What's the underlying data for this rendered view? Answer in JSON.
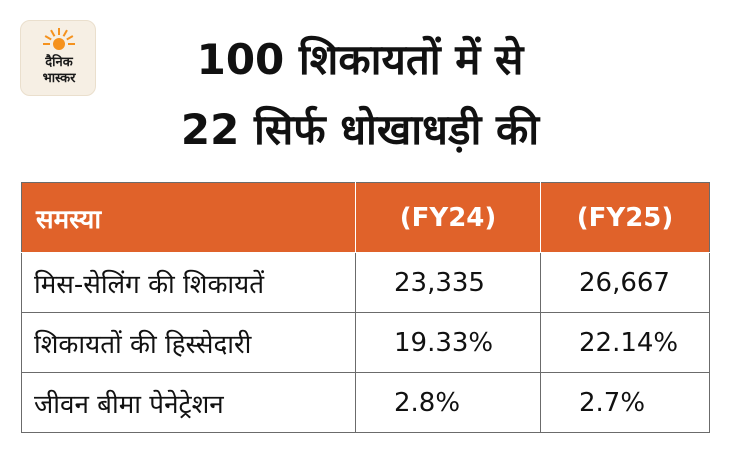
{
  "logo": {
    "line1": "दैनिक",
    "line2": "भास्कर",
    "sun_color": "#f5921e"
  },
  "headline": {
    "line1": "100 शिकायतों में से",
    "line2": "22 सिर्फ धोखाधड़ी की"
  },
  "table": {
    "header_color": "#e0622a",
    "columns": [
      "समस्या",
      "(FY24)",
      "(FY25)"
    ],
    "rows": [
      [
        "मिस-सेलिंग की शिकायतें",
        "23,335",
        "26,667"
      ],
      [
        "शिकायतों की हिस्सेदारी",
        "19.33%",
        "22.14%"
      ],
      [
        "जीवन बीमा पेनेट्रेशन",
        "2.8%",
        "2.7%"
      ]
    ]
  }
}
